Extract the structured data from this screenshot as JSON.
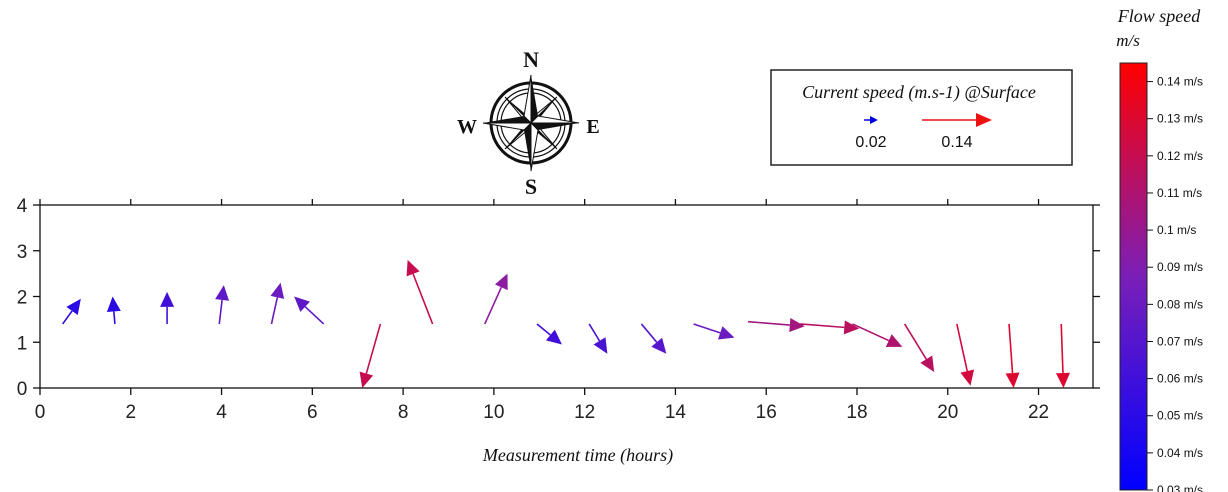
{
  "chart_data": {
    "type": "vector_scatter",
    "xlabel": "Measurement time (hours)",
    "ylabel": "",
    "xlim": [
      0,
      23.2
    ],
    "ylim": [
      0,
      4
    ],
    "x_ticks": [
      "0",
      "2",
      "4",
      "6",
      "8",
      "10",
      "12",
      "14",
      "16",
      "18",
      "20",
      "22"
    ],
    "y_ticks": [
      "0",
      "1",
      "2",
      "3",
      "4"
    ],
    "colorbar": {
      "title": "Flow speed",
      "unit": "m/s",
      "range": [
        0.03,
        0.145
      ],
      "low_color": "#0000ff",
      "high_color": "#ff0000",
      "tick_values": [
        0.03,
        0.04,
        0.05,
        0.06,
        0.07,
        0.08,
        0.09,
        0.1,
        0.11,
        0.12,
        0.13,
        0.14
      ],
      "tick_labels": [
        "0.03 m/s",
        "0.04 m/s",
        "0.05 m/s",
        "0.06 m/s",
        "0.07 m/s",
        "0.08 m/s",
        "0.09 m/s",
        "0.1  m/s",
        "0.11 m/s",
        "0.12 m/s",
        "0.13 m/s",
        "0.14 m/s"
      ]
    },
    "legend": {
      "title": "Current speed (m.s-1) @Surface",
      "entries": [
        {
          "label": "0.02",
          "color": "#0000dd"
        },
        {
          "label": "0.14",
          "color": "#ee1111"
        }
      ]
    },
    "compass": {
      "north": "N",
      "south": "S",
      "east": "E",
      "west": "W"
    },
    "vectors": [
      {
        "x0": 0.5,
        "y0": 1.4,
        "x1": 0.9,
        "y1": 1.95,
        "speed": 0.05
      },
      {
        "x0": 1.65,
        "y0": 1.4,
        "x1": 1.6,
        "y1": 2.0,
        "speed": 0.05
      },
      {
        "x0": 2.8,
        "y0": 1.4,
        "x1": 2.8,
        "y1": 2.1,
        "speed": 0.06
      },
      {
        "x0": 3.95,
        "y0": 1.4,
        "x1": 4.05,
        "y1": 2.25,
        "speed": 0.075
      },
      {
        "x0": 5.1,
        "y0": 1.4,
        "x1": 5.3,
        "y1": 2.3,
        "speed": 0.08
      },
      {
        "x0": 6.25,
        "y0": 1.4,
        "x1": 5.6,
        "y1": 2.0,
        "speed": 0.075
      },
      {
        "x0": 7.5,
        "y0": 1.4,
        "x1": 7.1,
        "y1": 0.0,
        "speed": 0.12
      },
      {
        "x0": 8.65,
        "y0": 1.4,
        "x1": 8.1,
        "y1": 2.8,
        "speed": 0.12
      },
      {
        "x0": 9.8,
        "y0": 1.4,
        "x1": 10.3,
        "y1": 2.5,
        "speed": 0.095
      },
      {
        "x0": 10.95,
        "y0": 1.4,
        "x1": 11.5,
        "y1": 0.95,
        "speed": 0.06
      },
      {
        "x0": 12.1,
        "y0": 1.4,
        "x1": 12.5,
        "y1": 0.75,
        "speed": 0.065
      },
      {
        "x0": 13.25,
        "y0": 1.4,
        "x1": 13.8,
        "y1": 0.75,
        "speed": 0.07
      },
      {
        "x0": 14.4,
        "y0": 1.4,
        "x1": 15.3,
        "y1": 1.1,
        "speed": 0.08
      },
      {
        "x0": 15.6,
        "y0": 1.45,
        "x1": 16.85,
        "y1": 1.35,
        "speed": 0.105
      },
      {
        "x0": 16.75,
        "y0": 1.4,
        "x1": 18.05,
        "y1": 1.3,
        "speed": 0.115
      },
      {
        "x0": 17.9,
        "y0": 1.4,
        "x1": 19.0,
        "y1": 0.9,
        "speed": 0.11
      },
      {
        "x0": 19.05,
        "y0": 1.4,
        "x1": 19.7,
        "y1": 0.35,
        "speed": 0.115
      },
      {
        "x0": 20.2,
        "y0": 1.4,
        "x1": 20.5,
        "y1": 0.05,
        "speed": 0.125
      },
      {
        "x0": 21.35,
        "y0": 1.4,
        "x1": 21.45,
        "y1": 0.0,
        "speed": 0.13
      },
      {
        "x0": 22.5,
        "y0": 1.4,
        "x1": 22.55,
        "y1": 0.0,
        "speed": 0.13
      }
    ]
  }
}
